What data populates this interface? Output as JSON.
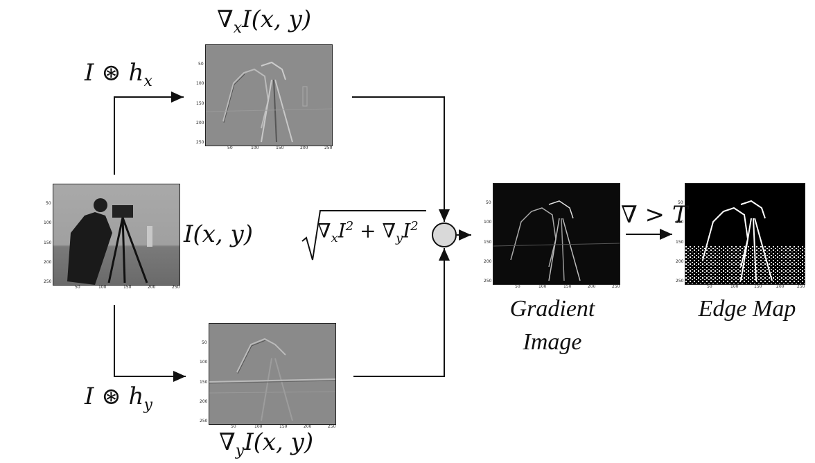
{
  "labels": {
    "conv_x": "I ⊛ h",
    "conv_x_sub": "x",
    "conv_y": "I ⊛ h",
    "conv_y_sub": "y",
    "grad_x_pre": "∇",
    "grad_x_sub": "x",
    "grad_x_post": "I(x, y)",
    "grad_y_pre": "∇",
    "grad_y_sub": "y",
    "grad_y_post": "I(x, y)",
    "input": "I(x, y)",
    "mag_a": "∇",
    "mag_a_sub": "x",
    "mag_b": "I",
    "mag_b_sup": "2",
    "mag_plus": " + ∇",
    "mag_c_sub": "y",
    "mag_d": "I",
    "mag_d_sup": "2",
    "threshold": "∇ > T",
    "gradient_caption_1": "Gradient",
    "gradient_caption_2": "Image",
    "edge_caption": "Edge Map"
  },
  "axis_ticks": {
    "x": [
      "50",
      "100",
      "150",
      "200",
      "250"
    ],
    "y": [
      "50",
      "100",
      "150",
      "200",
      "250"
    ]
  },
  "colors": {
    "line": "#111111",
    "node_fill": "#d9d9d9",
    "gx_bg": "#8c8c8c",
    "gy_bg": "#8a8a8a",
    "gradient_bg": "#0b0b0b",
    "edge_bg": "#000000",
    "input_bg": "#9a9a9a"
  }
}
